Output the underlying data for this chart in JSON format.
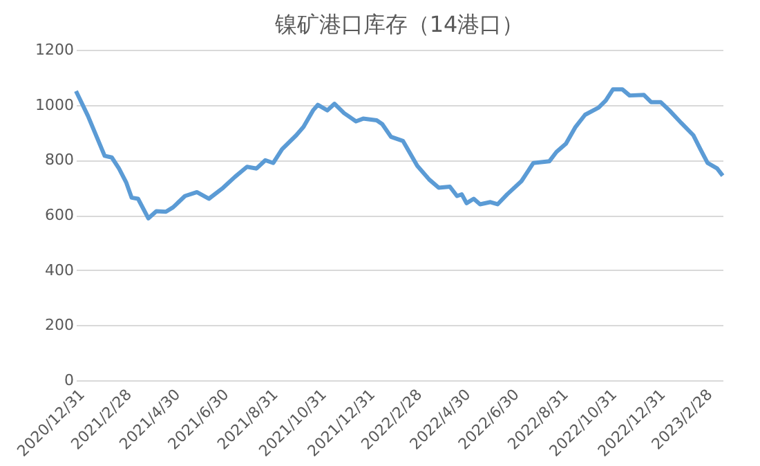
{
  "chart_data": {
    "type": "line",
    "title": "镍矿港口库存（14港口）",
    "x": [
      "2020-12-31",
      "2021-01-15",
      "2021-01-28",
      "2021-02-05",
      "2021-02-14",
      "2021-02-23",
      "2021-03-04",
      "2021-03-11",
      "2021-03-19",
      "2021-04-01",
      "2021-04-11",
      "2021-04-23",
      "2021-05-02",
      "2021-05-17",
      "2021-06-01",
      "2021-06-16",
      "2021-07-04",
      "2021-07-19",
      "2021-08-03",
      "2021-08-15",
      "2021-08-26",
      "2021-09-05",
      "2021-09-16",
      "2021-10-04",
      "2021-10-13",
      "2021-10-25",
      "2021-10-31",
      "2021-11-12",
      "2021-11-21",
      "2021-12-03",
      "2021-12-18",
      "2021-12-27",
      "2022-01-13",
      "2022-01-20",
      "2022-01-31",
      "2022-02-15",
      "2022-03-05",
      "2022-03-20",
      "2022-04-01",
      "2022-04-15",
      "2022-04-24",
      "2022-04-30",
      "2022-05-06",
      "2022-05-15",
      "2022-05-23",
      "2022-06-05",
      "2022-06-14",
      "2022-06-26",
      "2022-07-14",
      "2022-07-29",
      "2022-08-18",
      "2022-08-27",
      "2022-09-08",
      "2022-09-20",
      "2022-10-02",
      "2022-10-19",
      "2022-10-28",
      "2022-11-06",
      "2022-11-18",
      "2022-11-27",
      "2022-12-15",
      "2022-12-24",
      "2023-01-05",
      "2023-01-16",
      "2023-01-31",
      "2023-02-15",
      "2023-02-24",
      "2023-03-05",
      "2023-03-17",
      "2023-03-24"
    ],
    "series": [
      {
        "color": "#5b9bd5",
        "values": [
          1050,
          960,
          870,
          815,
          809,
          769,
          719,
          663,
          659,
          588,
          614,
          612,
          628,
          669,
          683,
          659,
          699,
          739,
          775,
          769,
          799,
          789,
          839,
          890,
          920,
          980,
          1000,
          980,
          1004,
          970,
          940,
          950,
          944,
          930,
          884,
          869,
          779,
          729,
          699,
          703,
          669,
          675,
          643,
          659,
          639,
          647,
          639,
          675,
          723,
          789,
          795,
          829,
          859,
          920,
          964,
          990,
          1016,
          1056,
          1056,
          1034,
          1036,
          1010,
          1010,
          980,
          934,
          890,
          839,
          789,
          769,
          743
        ]
      }
    ],
    "xlim": [
      "2020-12-31",
      "2023-03-24"
    ],
    "xticks": [
      {
        "value": "2020-12-31",
        "label": "2020/12/31"
      },
      {
        "value": "2021-02-28",
        "label": "2021/2/28"
      },
      {
        "value": "2021-04-30",
        "label": "2021/4/30"
      },
      {
        "value": "2021-06-30",
        "label": "2021/6/30"
      },
      {
        "value": "2021-08-31",
        "label": "2021/8/31"
      },
      {
        "value": "2021-10-31",
        "label": "2021/10/31"
      },
      {
        "value": "2021-12-31",
        "label": "2021/12/31"
      },
      {
        "value": "2022-02-28",
        "label": "2022/2/28"
      },
      {
        "value": "2022-04-30",
        "label": "2022/4/30"
      },
      {
        "value": "2022-06-30",
        "label": "2022/6/30"
      },
      {
        "value": "2022-08-31",
        "label": "2022/8/31"
      },
      {
        "value": "2022-10-31",
        "label": "2022/10/31"
      },
      {
        "value": "2022-12-31",
        "label": "2022/12/31"
      },
      {
        "value": "2023-02-28",
        "label": "2023/2/28"
      }
    ],
    "ylim": [
      0,
      1200
    ],
    "yticks": [
      0,
      200,
      400,
      600,
      800,
      1000,
      1200
    ],
    "grid": "y",
    "line_style": "solid",
    "marker": "none"
  }
}
